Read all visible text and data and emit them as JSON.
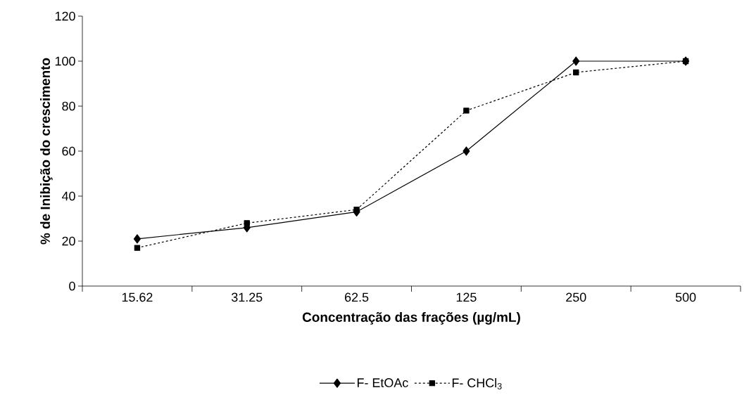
{
  "chart_data": {
    "type": "line",
    "xlabel": "Concentração das frações (µg/mL)",
    "ylabel": "% de Inibição do crescimento",
    "categories": [
      "15.62",
      "31.25",
      "62.5",
      "125",
      "250",
      "500"
    ],
    "series": [
      {
        "name": "F- EtOAc",
        "color": "#000000",
        "marker": "diamond",
        "line_style": "solid",
        "values": [
          21,
          26,
          33,
          60,
          100,
          100
        ]
      },
      {
        "name": "F- CHCl$_{3}$",
        "color": "#000000",
        "marker": "square",
        "line_style": "dashed",
        "values": [
          17,
          28,
          34,
          78,
          95,
          100
        ]
      }
    ],
    "ylim": [
      0,
      120
    ],
    "yticks": [
      0,
      20,
      40,
      60,
      80,
      100,
      120
    ],
    "grid": false,
    "legend": "bottom"
  }
}
